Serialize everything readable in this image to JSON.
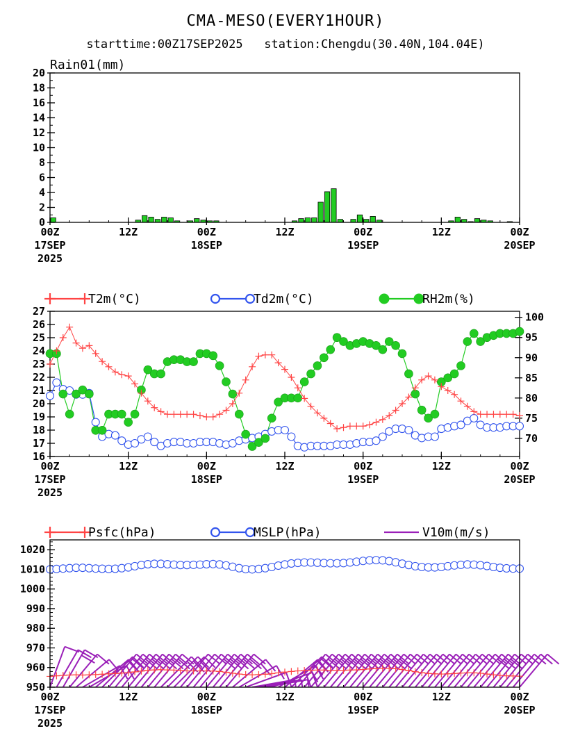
{
  "title": "CMA-MESO(EVERY1HOUR)",
  "subtitle": "starttime:00Z17SEP2025   station:Chengdu(30.40N,104.04E)",
  "x_axis": {
    "hours_range": [
      0,
      72
    ],
    "ticks": [
      {
        "h": 0,
        "l1": "00Z",
        "l2": "17SEP",
        "l3": "2025"
      },
      {
        "h": 12,
        "l1": "12Z",
        "l2": "",
        "l3": ""
      },
      {
        "h": 24,
        "l1": "00Z",
        "l2": "18SEP",
        "l3": ""
      },
      {
        "h": 36,
        "l1": "12Z",
        "l2": "",
        "l3": ""
      },
      {
        "h": 48,
        "l1": "00Z",
        "l2": "19SEP",
        "l3": ""
      },
      {
        "h": 60,
        "l1": "12Z",
        "l2": "",
        "l3": ""
      },
      {
        "h": 72,
        "l1": "00Z",
        "l2": "20SEP",
        "l3": ""
      }
    ]
  },
  "colors": {
    "rain": "#22cc22",
    "t2m": "#ff4444",
    "td2m": "#3355ee",
    "rh2m": "#22cc22",
    "psfc": "#ff4444",
    "mslp": "#3355ee",
    "wind": "#9a1fb8"
  },
  "chart_data": [
    {
      "type": "bar",
      "title": "Rain01(mm)",
      "ylim": [
        0,
        20
      ],
      "yticks": [
        0,
        2,
        4,
        6,
        8,
        10,
        12,
        14,
        16,
        18,
        20
      ],
      "x_hours": [
        1,
        2,
        3,
        4,
        5,
        6,
        7,
        8,
        9,
        10,
        11,
        12,
        13,
        14,
        15,
        16,
        17,
        18,
        19,
        20,
        21,
        22,
        23,
        24,
        25,
        26,
        27,
        28,
        29,
        30,
        31,
        32,
        33,
        34,
        35,
        36,
        37,
        38,
        39,
        40,
        41,
        42,
        43,
        44,
        45,
        46,
        47,
        48,
        49,
        50,
        51,
        52,
        53,
        54,
        55,
        56,
        57,
        58,
        59,
        60,
        61,
        62,
        63,
        64,
        65,
        66,
        67,
        68,
        69,
        70,
        71,
        72
      ],
      "values": [
        0.6,
        0,
        0,
        0,
        0,
        0,
        0,
        0,
        0,
        0,
        0,
        0,
        0,
        0.3,
        0.9,
        0.7,
        0.4,
        0.7,
        0.6,
        0.2,
        0,
        0.2,
        0.5,
        0.3,
        0.2,
        0.2,
        0,
        0,
        0,
        0,
        0,
        0,
        0,
        0,
        0,
        0,
        0,
        0.2,
        0.5,
        0.6,
        0.6,
        2.7,
        4.1,
        4.5,
        0.4,
        0,
        0.4,
        1,
        0.4,
        0.8,
        0.3,
        0,
        0,
        0,
        0,
        0,
        0,
        0,
        0,
        0,
        0,
        0.2,
        0.7,
        0.4,
        0.1,
        0.5,
        0.3,
        0.2,
        0,
        0,
        0.1,
        0
      ]
    },
    {
      "type": "line",
      "left_axis": {
        "ylim": [
          16,
          27
        ],
        "yticks": [
          16,
          17,
          18,
          19,
          20,
          21,
          22,
          23,
          24,
          25,
          26,
          27
        ]
      },
      "right_axis": {
        "ylim": [
          65.5,
          101.5
        ],
        "yticks": [
          70,
          75,
          80,
          85,
          90,
          95,
          100
        ]
      },
      "x_hours": [
        0,
        1,
        2,
        3,
        4,
        5,
        6,
        7,
        8,
        9,
        10,
        11,
        12,
        13,
        14,
        15,
        16,
        17,
        18,
        19,
        20,
        21,
        22,
        23,
        24,
        25,
        26,
        27,
        28,
        29,
        30,
        31,
        32,
        33,
        34,
        35,
        36,
        37,
        38,
        39,
        40,
        41,
        42,
        43,
        44,
        45,
        46,
        47,
        48,
        49,
        50,
        51,
        52,
        53,
        54,
        55,
        56,
        57,
        58,
        59,
        60,
        61,
        62,
        63,
        64,
        65,
        66,
        67,
        68,
        69,
        70,
        71,
        72
      ],
      "series": [
        {
          "name": "T2m(°C)",
          "axis": "left",
          "marker": "plus",
          "values": [
            23,
            24,
            25,
            25.8,
            24.6,
            24.2,
            24.4,
            23.8,
            23.2,
            22.8,
            22.4,
            22.2,
            22.1,
            21.5,
            20.8,
            20.2,
            19.7,
            19.4,
            19.2,
            19.2,
            19.2,
            19.2,
            19.2,
            19.1,
            19,
            19,
            19.2,
            19.5,
            20,
            20.8,
            21.8,
            22.8,
            23.6,
            23.7,
            23.7,
            23.1,
            22.6,
            22,
            21.2,
            20.4,
            19.8,
            19.3,
            18.9,
            18.5,
            18.1,
            18.2,
            18.3,
            18.3,
            18.3,
            18.4,
            18.6,
            18.8,
            19.1,
            19.5,
            20,
            20.5,
            21.2,
            21.8,
            22.1,
            21.8,
            21.3,
            21,
            20.7,
            20.2,
            19.8,
            19.4,
            19.2,
            19.2,
            19.2,
            19.2,
            19.2,
            19.2,
            19.1
          ]
        },
        {
          "name": "Td2m(°C)",
          "axis": "left",
          "marker": "circle-open",
          "values": [
            20.6,
            21.6,
            21.1,
            21,
            20.7,
            20.7,
            20.8,
            18.6,
            17.5,
            17.7,
            17.6,
            17.2,
            16.9,
            17,
            17.3,
            17.5,
            17.1,
            16.8,
            17,
            17.1,
            17.1,
            17,
            17,
            17.1,
            17.1,
            17.1,
            17,
            16.9,
            17,
            17.2,
            17.3,
            17.4,
            17.5,
            17.7,
            17.9,
            18,
            18,
            17.5,
            16.8,
            16.7,
            16.8,
            16.8,
            16.8,
            16.8,
            16.9,
            16.9,
            16.9,
            17,
            17.1,
            17.1,
            17.2,
            17.5,
            17.9,
            18.1,
            18.1,
            18,
            17.6,
            17.4,
            17.5,
            17.5,
            18.1,
            18.2,
            18.3,
            18.4,
            18.7,
            18.9,
            18.4,
            18.2,
            18.2,
            18.2,
            18.3,
            18.3,
            18.3
          ]
        },
        {
          "name": "RH2m(%)",
          "axis": "right",
          "marker": "circle-filled",
          "values": [
            91,
            91,
            81,
            76,
            81,
            82,
            81,
            72,
            72,
            76,
            76,
            76,
            74,
            76,
            82,
            87,
            86,
            86,
            89,
            89.5,
            89.5,
            89,
            89,
            91,
            91,
            90.5,
            88,
            84,
            81,
            76,
            71,
            68,
            69,
            70,
            75,
            79,
            80,
            80,
            80,
            84,
            86,
            88,
            90,
            92,
            95,
            94,
            93,
            93.5,
            94,
            93.5,
            93,
            92,
            94,
            93,
            91,
            86,
            81,
            77,
            75,
            76,
            84,
            85,
            86,
            88,
            94,
            96,
            94,
            95,
            95.5,
            96,
            96,
            96,
            96.5
          ]
        }
      ]
    },
    {
      "type": "line",
      "ylim": [
        950,
        1025
      ],
      "yticks": [
        950,
        960,
        970,
        980,
        990,
        1000,
        1010,
        1020
      ],
      "x_hours": [
        0,
        1,
        2,
        3,
        4,
        5,
        6,
        7,
        8,
        9,
        10,
        11,
        12,
        13,
        14,
        15,
        16,
        17,
        18,
        19,
        20,
        21,
        22,
        23,
        24,
        25,
        26,
        27,
        28,
        29,
        30,
        31,
        32,
        33,
        34,
        35,
        36,
        37,
        38,
        39,
        40,
        41,
        42,
        43,
        44,
        45,
        46,
        47,
        48,
        49,
        50,
        51,
        52,
        53,
        54,
        55,
        56,
        57,
        58,
        59,
        60,
        61,
        62,
        63,
        64,
        65,
        66,
        67,
        68,
        69,
        70,
        71,
        72
      ],
      "series": [
        {
          "name": "Psfc(hPa)",
          "marker": "plus",
          "values": [
            955.5,
            955.8,
            956,
            956.2,
            956.3,
            956.2,
            956.3,
            956.4,
            956.6,
            956.8,
            957,
            957.2,
            957.4,
            957.8,
            958.2,
            958.6,
            958.8,
            958.9,
            958.8,
            958.7,
            958.5,
            958.3,
            958.3,
            958.3,
            958.3,
            958.2,
            958,
            957.6,
            957.1,
            956.7,
            956.4,
            956.3,
            956.4,
            956.6,
            956.9,
            957.3,
            957.7,
            958,
            958.3,
            958.5,
            958.6,
            958.7,
            958.7,
            958.6,
            958.6,
            958.6,
            958.7,
            958.8,
            959,
            959.3,
            959.5,
            959.6,
            959.6,
            959.4,
            959,
            958.5,
            957.9,
            957.4,
            957,
            956.8,
            956.7,
            956.8,
            957,
            957.2,
            957.3,
            957.3,
            957.1,
            956.7,
            956.3,
            956,
            955.8,
            955.7,
            955.6
          ]
        },
        {
          "name": "MSLP(hPa)",
          "marker": "circle-open",
          "values": [
            1010,
            1010.2,
            1010.4,
            1010.6,
            1010.8,
            1010.8,
            1010.6,
            1010.4,
            1010.3,
            1010.2,
            1010.3,
            1010.6,
            1011,
            1011.6,
            1012.2,
            1012.6,
            1012.8,
            1012.8,
            1012.6,
            1012.4,
            1012.2,
            1012.2,
            1012.3,
            1012.4,
            1012.6,
            1012.7,
            1012.5,
            1012,
            1011.3,
            1010.6,
            1010.1,
            1010,
            1010.2,
            1010.6,
            1011.2,
            1011.9,
            1012.5,
            1013,
            1013.3,
            1013.5,
            1013.5,
            1013.4,
            1013.2,
            1013.1,
            1013.1,
            1013.2,
            1013.5,
            1013.9,
            1014.3,
            1014.6,
            1014.7,
            1014.6,
            1014.2,
            1013.6,
            1012.9,
            1012.2,
            1011.6,
            1011.2,
            1011,
            1011,
            1011.2,
            1011.6,
            1012,
            1012.3,
            1012.5,
            1012.4,
            1012.1,
            1011.7,
            1011.2,
            1010.8,
            1010.5,
            1010.4,
            1010.4
          ]
        },
        {
          "name": "V10m(m/s)",
          "marker": "wind-barb",
          "speed_ms": [
            2,
            3,
            4,
            3,
            3,
            2,
            3,
            3,
            4,
            4,
            4,
            4,
            4,
            4,
            4,
            4,
            4,
            4,
            4,
            4,
            3,
            3,
            3,
            4,
            4,
            4,
            4,
            4,
            4,
            3,
            3,
            3,
            3,
            3,
            4,
            4,
            4,
            4,
            4,
            4,
            4,
            4,
            4,
            4,
            4,
            4,
            4,
            4,
            4,
            4,
            4,
            3,
            3,
            3,
            3,
            3,
            3,
            3,
            3,
            3,
            3,
            3,
            3,
            3,
            3,
            4,
            4,
            4,
            3,
            3,
            3,
            3,
            3
          ],
          "dir_deg": [
            20,
            30,
            30,
            40,
            50,
            60,
            60,
            50,
            45,
            40,
            40,
            40,
            40,
            40,
            40,
            40,
            40,
            45,
            45,
            45,
            40,
            40,
            40,
            40,
            40,
            40,
            40,
            40,
            50,
            60,
            70,
            80,
            80,
            80,
            70,
            60,
            50,
            45,
            40,
            40,
            40,
            40,
            40,
            40,
            40,
            40,
            40,
            40,
            40,
            40,
            40,
            40,
            40,
            40,
            40,
            40,
            40,
            40,
            40,
            40,
            40,
            40,
            40,
            40,
            40,
            40,
            40,
            40,
            40,
            40,
            40,
            40,
            40
          ]
        }
      ]
    }
  ]
}
